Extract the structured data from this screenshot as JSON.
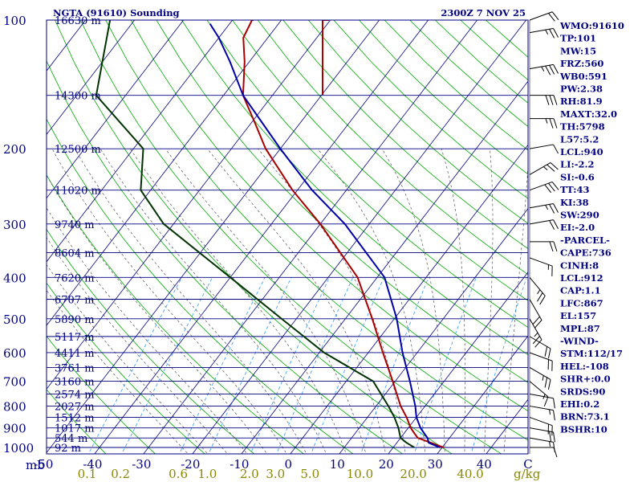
{
  "header": {
    "title": "NGTA (91610) Sounding",
    "datetime": "2300Z  7 NOV 25"
  },
  "chart_data": {
    "type": "line",
    "title": "NGTA (91610) Sounding",
    "datetime": "2300Z  7 NOV 25",
    "pressure_levels": [
      100,
      200,
      300,
      400,
      500,
      600,
      700,
      800,
      900,
      1000
    ],
    "pressure_axis_label": "mb",
    "temperature_ticks": [
      -50,
      -40,
      -30,
      -20,
      -10,
      0,
      10,
      20,
      30,
      40
    ],
    "temperature_tick_labels": [
      "-50",
      "-40",
      "-30",
      "-20",
      "-10",
      "0",
      "10",
      "20",
      "30",
      "40"
    ],
    "temperature_unit": "C",
    "mixing_ratio_ticks": [
      0.1,
      0.2,
      0.6,
      1.0,
      2.0,
      3.0,
      5.0,
      10.0,
      20.0,
      40.0
    ],
    "mixing_ratio_labels": [
      "0.1",
      "0.2",
      "0.6",
      "1.0",
      "2.0",
      "3.0",
      "5.0",
      "10.0",
      "20.0",
      "40.0"
    ],
    "mixing_ratio_unit": "g/kg",
    "height_labels": [
      {
        "p": 100,
        "text": "16630 m"
      },
      {
        "p": 150,
        "text": "14300 m"
      },
      {
        "p": 200,
        "text": "12500 m"
      },
      {
        "p": 250,
        "text": "11020 m"
      },
      {
        "p": 300,
        "text": "9740 m"
      },
      {
        "p": 350,
        "text": "8604 m"
      },
      {
        "p": 400,
        "text": "7620 m"
      },
      {
        "p": 450,
        "text": "6707 m"
      },
      {
        "p": 500,
        "text": "5890 m"
      },
      {
        "p": 550,
        "text": "5117 m"
      },
      {
        "p": 600,
        "text": "4411 m"
      },
      {
        "p": 650,
        "text": "3761 m"
      },
      {
        "p": 700,
        "text": "3160 m"
      },
      {
        "p": 750,
        "text": "2574 m"
      },
      {
        "p": 800,
        "text": "2027 m"
      },
      {
        "p": 850,
        "text": "1512 m"
      },
      {
        "p": 900,
        "text": "1017 m"
      },
      {
        "p": 950,
        "text": "544 m"
      },
      {
        "p": 1000,
        "text": "92 m"
      }
    ],
    "series": [
      {
        "color": "#aa0000",
        "points": [
          {
            "p": 1000,
            "t": 30.3
          },
          {
            "p": 975,
            "t": 27
          },
          {
            "p": 950,
            "t": 23.5
          },
          {
            "p": 925,
            "t": 22
          },
          {
            "p": 900,
            "t": 20.5
          },
          {
            "p": 850,
            "t": 18
          },
          {
            "p": 800,
            "t": 15
          },
          {
            "p": 700,
            "t": 9.5
          },
          {
            "p": 600,
            "t": 3
          },
          {
            "p": 500,
            "t": -4.5
          },
          {
            "p": 400,
            "t": -14
          },
          {
            "p": 300,
            "t": -30
          },
          {
            "p": 250,
            "t": -41
          },
          {
            "p": 200,
            "t": -53
          },
          {
            "p": 175,
            "t": -59
          },
          {
            "p": 150,
            "t": -66
          },
          {
            "p": 125,
            "t": -71
          },
          {
            "p": 110,
            "t": -75
          },
          {
            "p": 100,
            "t": -76
          }
        ]
      },
      {
        "color": "#003300",
        "points": [
          {
            "p": 1000,
            "t": 24.3
          },
          {
            "p": 975,
            "t": 22
          },
          {
            "p": 950,
            "t": 20
          },
          {
            "p": 925,
            "t": 19
          },
          {
            "p": 900,
            "t": 18
          },
          {
            "p": 850,
            "t": 15.5
          },
          {
            "p": 800,
            "t": 12.5
          },
          {
            "p": 700,
            "t": 5.5
          },
          {
            "p": 600,
            "t": -9
          },
          {
            "p": 500,
            "t": -23
          },
          {
            "p": 400,
            "t": -40
          },
          {
            "p": 300,
            "t": -62
          },
          {
            "p": 250,
            "t": -72
          },
          {
            "p": 200,
            "t": -78
          },
          {
            "p": 150,
            "t": -96
          },
          {
            "p": 100,
            "t": -105
          }
        ]
      },
      {
        "color": "#0000aa",
        "points": [
          {
            "p": 1000,
            "t": 29.5
          },
          {
            "p": 975,
            "t": 26.5
          },
          {
            "p": 950,
            "t": 25.5
          },
          {
            "p": 925,
            "t": 24
          },
          {
            "p": 900,
            "t": 22.5
          },
          {
            "p": 850,
            "t": 20
          },
          {
            "p": 800,
            "t": 18
          },
          {
            "p": 700,
            "t": 13
          },
          {
            "p": 600,
            "t": 7
          },
          {
            "p": 500,
            "t": 0.5
          },
          {
            "p": 400,
            "t": -8.5
          },
          {
            "p": 300,
            "t": -25
          },
          {
            "p": 250,
            "t": -37
          },
          {
            "p": 200,
            "t": -50
          },
          {
            "p": 150,
            "t": -66
          },
          {
            "p": 125,
            "t": -74
          },
          {
            "p": 110,
            "t": -80
          },
          {
            "p": 102,
            "t": -84
          }
        ]
      }
    ],
    "tropopause_line": {
      "color": "#aa0000",
      "p_top": 100,
      "p_bottom": 150,
      "t": -76
    },
    "winds": [
      {
        "p": 100,
        "dir": 70,
        "spd": 20
      },
      {
        "p": 107,
        "dir": 80,
        "spd": 25
      },
      {
        "p": 130,
        "dir": 80,
        "spd": 35
      },
      {
        "p": 150,
        "dir": 90,
        "spd": 30
      },
      {
        "p": 170,
        "dir": 90,
        "spd": 25
      },
      {
        "p": 200,
        "dir": 80,
        "spd": 10
      },
      {
        "p": 230,
        "dir": 60,
        "spd": 25
      },
      {
        "p": 250,
        "dir": 70,
        "spd": 30
      },
      {
        "p": 275,
        "dir": 80,
        "spd": 25
      },
      {
        "p": 300,
        "dir": 80,
        "spd": 20
      },
      {
        "p": 330,
        "dir": 90,
        "spd": 20
      },
      {
        "p": 360,
        "dir": 110,
        "spd": 15
      },
      {
        "p": 400,
        "dir": 140,
        "spd": 25
      },
      {
        "p": 450,
        "dir": 150,
        "spd": 20
      },
      {
        "p": 500,
        "dir": 150,
        "spd": 25
      },
      {
        "p": 550,
        "dir": 120,
        "spd": 20
      },
      {
        "p": 600,
        "dir": 110,
        "spd": 20
      },
      {
        "p": 650,
        "dir": 120,
        "spd": 25
      },
      {
        "p": 700,
        "dir": 130,
        "spd": 15
      },
      {
        "p": 750,
        "dir": 100,
        "spd": 10
      },
      {
        "p": 800,
        "dir": 100,
        "spd": 15
      },
      {
        "p": 850,
        "dir": 110,
        "spd": 20
      },
      {
        "p": 900,
        "dir": 100,
        "spd": 20
      },
      {
        "p": 950,
        "dir": 100,
        "spd": 15
      },
      {
        "p": 1000,
        "dir": 90,
        "spd": 10
      }
    ],
    "colors": {
      "isobar": "#000080",
      "isotherm": "#000080",
      "dry_adiabat": "#00aa00",
      "moist_adiabat": "#555555",
      "mixing_ratio": "#3399ff",
      "axis_labels": "#000080",
      "mixing_labels": "#888800"
    },
    "xlim": [
      -50,
      50
    ],
    "ylim": [
      1050,
      100
    ]
  },
  "indices": [
    "WMO:91610",
    "TP:101",
    "MW:15",
    "FRZ:560",
    "WB0:591",
    "PW:2.38",
    "RH:81.9",
    "MAXT:32.0",
    "TH:5798",
    "L57:5.2",
    "LCL:940",
    "LI:-2.2",
    "SI:-0.6",
    "TT:43",
    "KI:38",
    "SW:290",
    "EI:-2.0",
    "-PARCEL-",
    "CAPE:736",
    "CINH:8",
    "LCL:912",
    "CAP:1.1",
    "LFC:867",
    "EL:157",
    "MPL:87",
    "-WIND-",
    "STM:112/17",
    "HEL:-108",
    "SHR+:0.0",
    "SRDS:90",
    "EHI:0.2",
    "BRN:73.1",
    "BSHR:10"
  ]
}
